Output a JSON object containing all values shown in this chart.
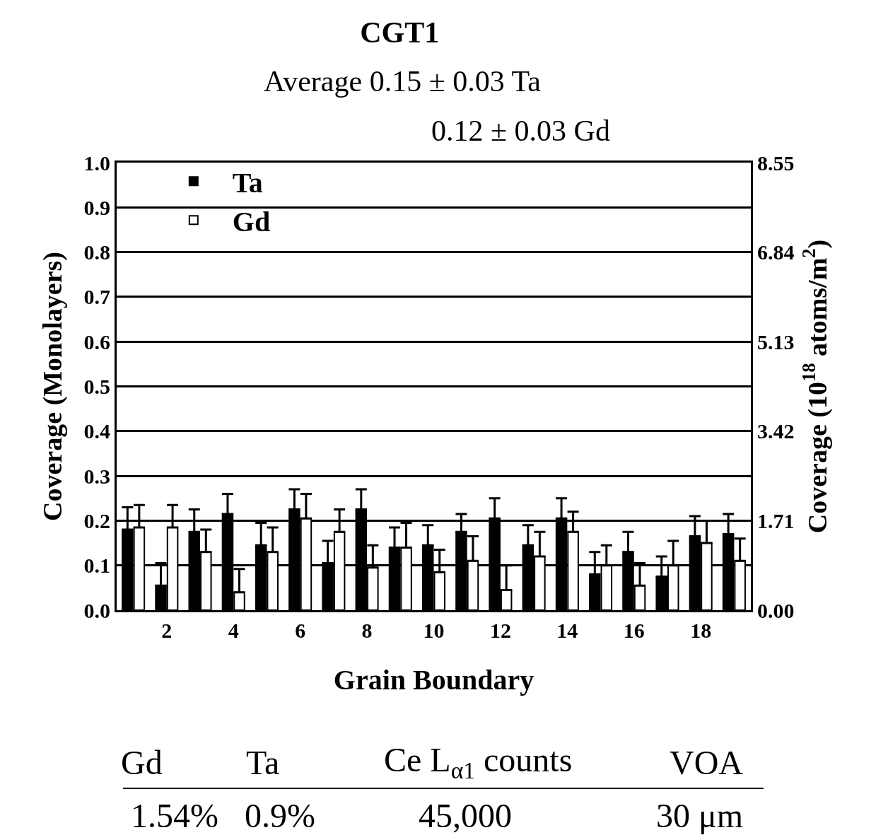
{
  "chart_data": {
    "type": "bar",
    "title": "CGT1",
    "subtitle": "Average 0.15 ± 0.03 Ta\n0.12 ± 0.03 Gd",
    "xlabel": "Grain Boundary",
    "ylabel": "Coverage (Monolayers)",
    "y2label": "Coverage (10$^{18}$ atoms/m$^{2}$)",
    "x": [
      1,
      2,
      3,
      4,
      5,
      6,
      7,
      8,
      9,
      10,
      11,
      12,
      13,
      14,
      15,
      16,
      17,
      18,
      19
    ],
    "xlim": [
      0.5,
      19.5
    ],
    "xticks": [
      2,
      4,
      6,
      8,
      10,
      12,
      14,
      16,
      18
    ],
    "ylim": [
      0,
      1
    ],
    "yticks": [
      {
        "value": 0,
        "label": "0.0"
      },
      {
        "value": 0.1,
        "label": "0.1"
      },
      {
        "value": 0.2,
        "label": "0.2"
      },
      {
        "value": 0.3,
        "label": "0.3"
      },
      {
        "value": 0.4,
        "label": "0.4"
      },
      {
        "value": 0.5,
        "label": "0.5"
      },
      {
        "value": 0.6,
        "label": "0.6"
      },
      {
        "value": 0.7,
        "label": "0.7"
      },
      {
        "value": 0.8,
        "label": "0.8"
      },
      {
        "value": 0.9,
        "label": "0.9"
      },
      {
        "value": 1,
        "label": "1.0"
      }
    ],
    "y2lim": [
      0,
      8.55
    ],
    "y2ticks": [
      {
        "value": 0,
        "label": "0.00"
      },
      1.71,
      3.42,
      5.13,
      6.84,
      8.55
    ],
    "grid": "y",
    "legend": "top left",
    "series": [
      {
        "name": "Ta",
        "color": "#000000",
        "values": [
          0.18,
          0.055,
          0.175,
          0.215,
          0.145,
          0.225,
          0.105,
          0.225,
          0.14,
          0.145,
          0.175,
          0.205,
          0.145,
          0.205,
          0.08,
          0.13,
          0.075,
          0.165,
          0.17
        ],
        "errors": [
          [
            0.18,
            0.23
          ],
          [
            0.055,
            0.105
          ],
          [
            0.175,
            0.225
          ],
          [
            0.215,
            0.26
          ],
          [
            0.145,
            0.195
          ],
          [
            0.225,
            0.27
          ],
          [
            0.105,
            0.155
          ],
          [
            0.225,
            0.27
          ],
          [
            0.14,
            0.185
          ],
          [
            0.145,
            0.19
          ],
          [
            0.175,
            0.215
          ],
          [
            0.205,
            0.25
          ],
          [
            0.145,
            0.19
          ],
          [
            0.205,
            0.25
          ],
          [
            0.08,
            0.13
          ],
          [
            0.13,
            0.175
          ],
          [
            0.075,
            0.12
          ],
          [
            0.165,
            0.21
          ],
          [
            0.17,
            0.215
          ]
        ]
      },
      {
        "name": "Gd",
        "color": "#ffffff",
        "values": [
          0.185,
          0.185,
          0.13,
          0.04,
          0.13,
          0.205,
          0.175,
          0.095,
          0.14,
          0.085,
          0.11,
          0.045,
          0.12,
          0.175,
          0.1,
          0.055,
          0.1,
          0.15,
          0.11
        ],
        "errors": [
          [
            0.185,
            0.235
          ],
          [
            0.185,
            0.235
          ],
          [
            0.13,
            0.18
          ],
          [
            0.04,
            0.092
          ],
          [
            0.13,
            0.185
          ],
          [
            0.205,
            0.26
          ],
          [
            0.175,
            0.225
          ],
          [
            0.095,
            0.145
          ],
          [
            0.14,
            0.195
          ],
          [
            0.085,
            0.135
          ],
          [
            0.11,
            0.165
          ],
          [
            0.045,
            0.1
          ],
          [
            0.12,
            0.175
          ],
          [
            0.175,
            0.22
          ],
          [
            0.1,
            0.145
          ],
          [
            0.055,
            0.105
          ],
          [
            0.1,
            0.155
          ],
          [
            0.15,
            0.2
          ],
          [
            0.11,
            0.16
          ]
        ]
      }
    ],
    "annotations": [
      "Gd",
      "Ta",
      "Ce L$_{α1}$ counts",
      "VOA",
      "1.54%",
      "0.9%",
      "45,000",
      "30 μm"
    ]
  }
}
